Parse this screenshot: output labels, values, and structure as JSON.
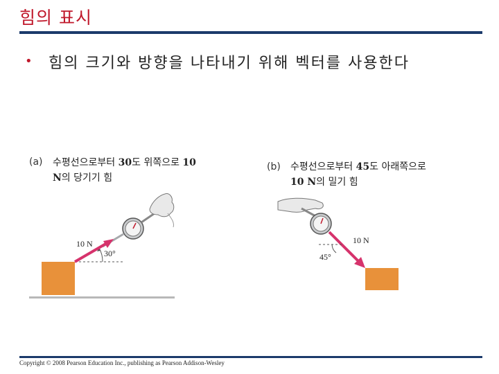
{
  "slide": {
    "title": "힘의 표시",
    "bullet": "힘의 크기와 방향을 나타내기 위해 벡터를 사용한다"
  },
  "panel_a": {
    "letter": "(a)",
    "caption_line1_pre": "수평선으로부터 ",
    "caption_line1_num": "30",
    "caption_line1_post": "도 위쪽으로 ",
    "caption_line1_num2": "10",
    "caption_line2_num": "N",
    "caption_line2_post": "의 당기기 힘",
    "force_label": "10 N",
    "angle_label": "30°"
  },
  "panel_b": {
    "letter": "(b)",
    "caption_line1_pre": "수평선으로부터 ",
    "caption_line1_num": "45",
    "caption_line1_post": "도 아래쪽으로",
    "caption_line2_num": "10 N",
    "caption_line2_post": "의 밀기 힘",
    "force_label": "10 N",
    "angle_label": "45°"
  },
  "footer": {
    "copyright": "Copyright © 2008 Pearson Education Inc., publishing as Pearson Addison-Wesley"
  },
  "colors": {
    "title": "#c0182b",
    "rule": "#1b3a6b",
    "box": "#e8913a",
    "vector": "#d6336c"
  }
}
